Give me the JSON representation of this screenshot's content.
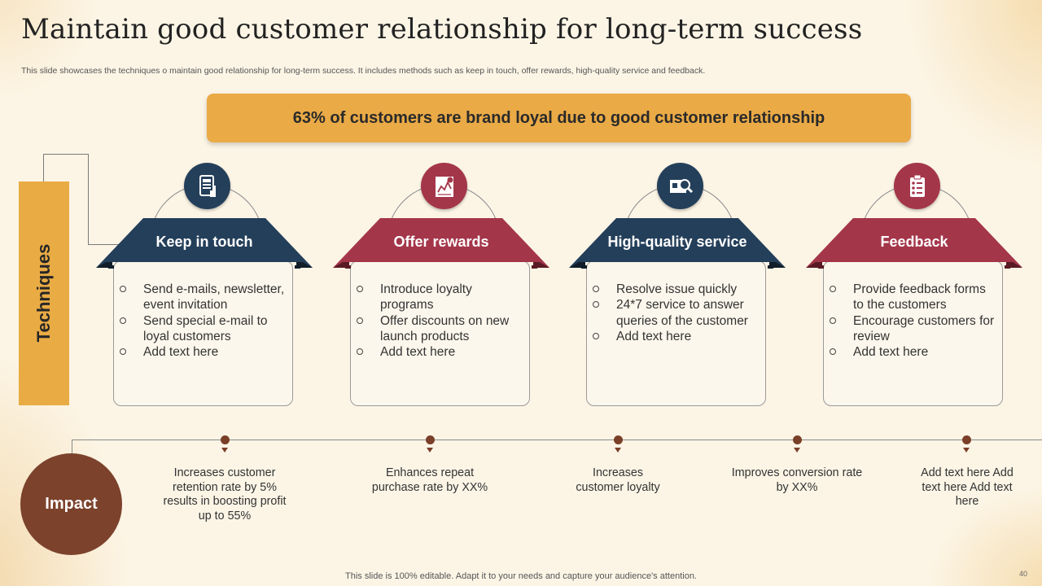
{
  "title": "Maintain good customer relationship for long-term success",
  "subtitle": "This slide showcases the techniques o maintain good relationship for long-term success. It includes methods such as keep in touch, offer rewards, high-quality service and feedback.",
  "banner": "63% of customers are brand loyal due to good customer relationship",
  "techniques_label": "Techniques",
  "colors": {
    "navy": "#243f5a",
    "crimson": "#a4364a",
    "gold": "#eaaa46",
    "brown": "#7c422c"
  },
  "cards": [
    {
      "title": "Keep in touch",
      "icon": "phone-touch-icon",
      "color": "#243f5a",
      "items": [
        "Send e-mails, newsletter, event invitation",
        "Send special e-mail to loyal customers",
        "Add text here"
      ]
    },
    {
      "title": "Offer rewards",
      "icon": "chart-report-icon",
      "color": "#a4364a",
      "items": [
        "Introduce loyalty programs",
        "Offer discounts on new launch products",
        "Add text here"
      ]
    },
    {
      "title": "High-quality service",
      "icon": "magnifier-board-icon",
      "color": "#243f5a",
      "items": [
        "Resolve issue quickly",
        "24*7 service to answer queries of the customer",
        "Add text here"
      ]
    },
    {
      "title": "Feedback",
      "icon": "clipboard-checklist-icon",
      "color": "#a4364a",
      "items": [
        "Provide feedback forms to the customers",
        "Encourage customers for review",
        "Add text here"
      ]
    }
  ],
  "impact_label": "Impact",
  "impacts": [
    "Increases customer retention rate by 5% results in boosting profit up to 55%",
    "Enhances repeat purchase rate by XX%",
    "Increases customer loyalty",
    "Improves conversion rate by XX%",
    "Add text here Add text here Add text here"
  ],
  "footer": "This slide is 100% editable. Adapt it to your needs and capture your audience's attention.",
  "page_number": "40"
}
